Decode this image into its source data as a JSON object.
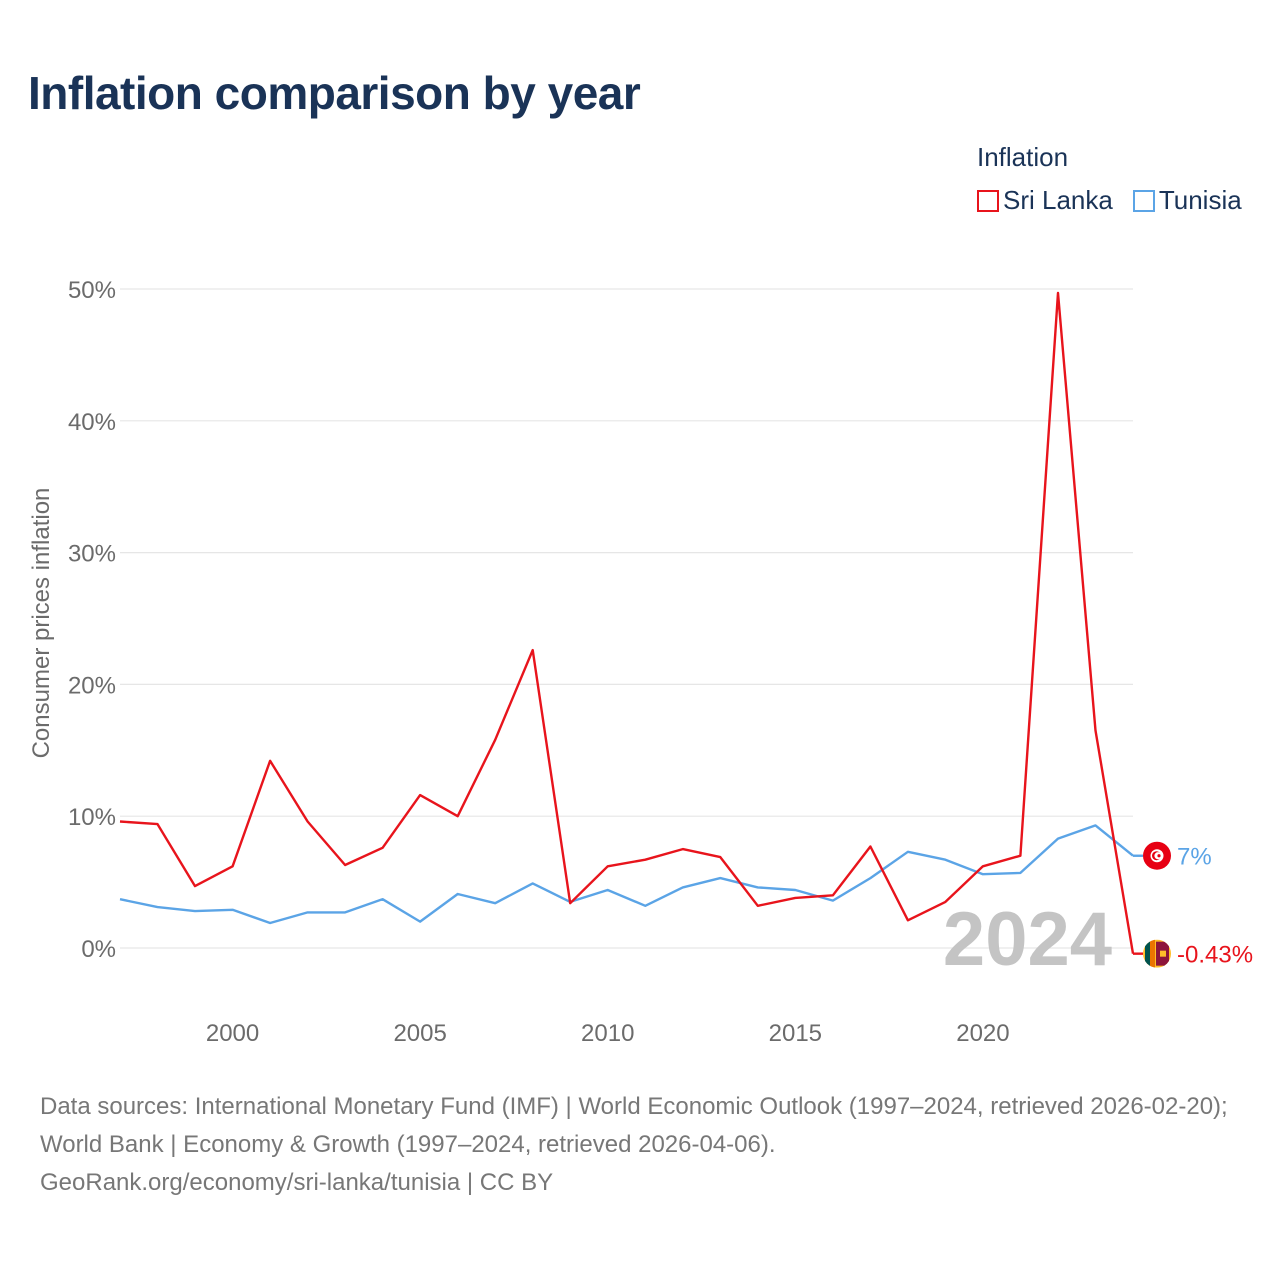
{
  "title": "Inflation comparison by year",
  "legend": {
    "title": "Inflation",
    "items": [
      {
        "name": "Sri Lanka",
        "color": "#e8141c"
      },
      {
        "name": "Tunisia",
        "color": "#5ba4e6"
      }
    ]
  },
  "chart_data": {
    "type": "line",
    "title": "Inflation comparison by year",
    "xlabel": "",
    "ylabel": "Consumer prices inflation",
    "x": [
      1997,
      1998,
      1999,
      2000,
      2001,
      2002,
      2003,
      2004,
      2005,
      2006,
      2007,
      2008,
      2009,
      2010,
      2011,
      2012,
      2013,
      2014,
      2015,
      2016,
      2017,
      2018,
      2019,
      2020,
      2021,
      2022,
      2023,
      2024
    ],
    "series": [
      {
        "name": "Sri Lanka",
        "color": "#e8141c",
        "values": [
          9.6,
          9.4,
          4.7,
          6.2,
          14.2,
          9.6,
          6.3,
          7.6,
          11.6,
          10.0,
          15.8,
          22.6,
          3.4,
          6.2,
          6.7,
          7.5,
          6.9,
          3.2,
          3.8,
          4.0,
          7.7,
          2.1,
          3.5,
          6.2,
          7.0,
          49.7,
          16.5,
          -0.43
        ],
        "end_label": "-0.43%"
      },
      {
        "name": "Tunisia",
        "color": "#5ba4e6",
        "values": [
          3.7,
          3.1,
          2.8,
          2.9,
          1.9,
          2.7,
          2.7,
          3.7,
          2.0,
          4.1,
          3.4,
          4.9,
          3.5,
          4.4,
          3.2,
          4.6,
          5.3,
          4.6,
          4.4,
          3.6,
          5.3,
          7.3,
          6.7,
          5.6,
          5.7,
          8.3,
          9.3,
          7.0
        ],
        "end_label": "7%"
      }
    ],
    "y_ticks": [
      0,
      10,
      20,
      30,
      40,
      50
    ],
    "y_tick_labels": [
      "0%",
      "10%",
      "20%",
      "30%",
      "40%",
      "50%"
    ],
    "x_ticks": [
      2000,
      2005,
      2010,
      2015,
      2020
    ],
    "x_tick_labels": [
      "2000",
      "2005",
      "2010",
      "2015",
      "2020"
    ],
    "xlim": [
      1997,
      2024
    ],
    "ylim": [
      0,
      50
    ],
    "grid": true,
    "year_watermark": "2024",
    "legend_position": "top-right"
  },
  "sources": {
    "line1": "Data sources: International Monetary Fund (IMF) | World Economic Outlook (1997–2024, retrieved 2026-02-20); World Bank | Economy & Growth (1997–2024, retrieved 2026-04-06).",
    "line2": "GeoRank.org/economy/sri-lanka/tunisia | CC BY"
  },
  "icons": {
    "tunisia_flag": "tunisia-flag-icon",
    "sri_lanka_flag": "sri-lanka-flag-icon"
  }
}
